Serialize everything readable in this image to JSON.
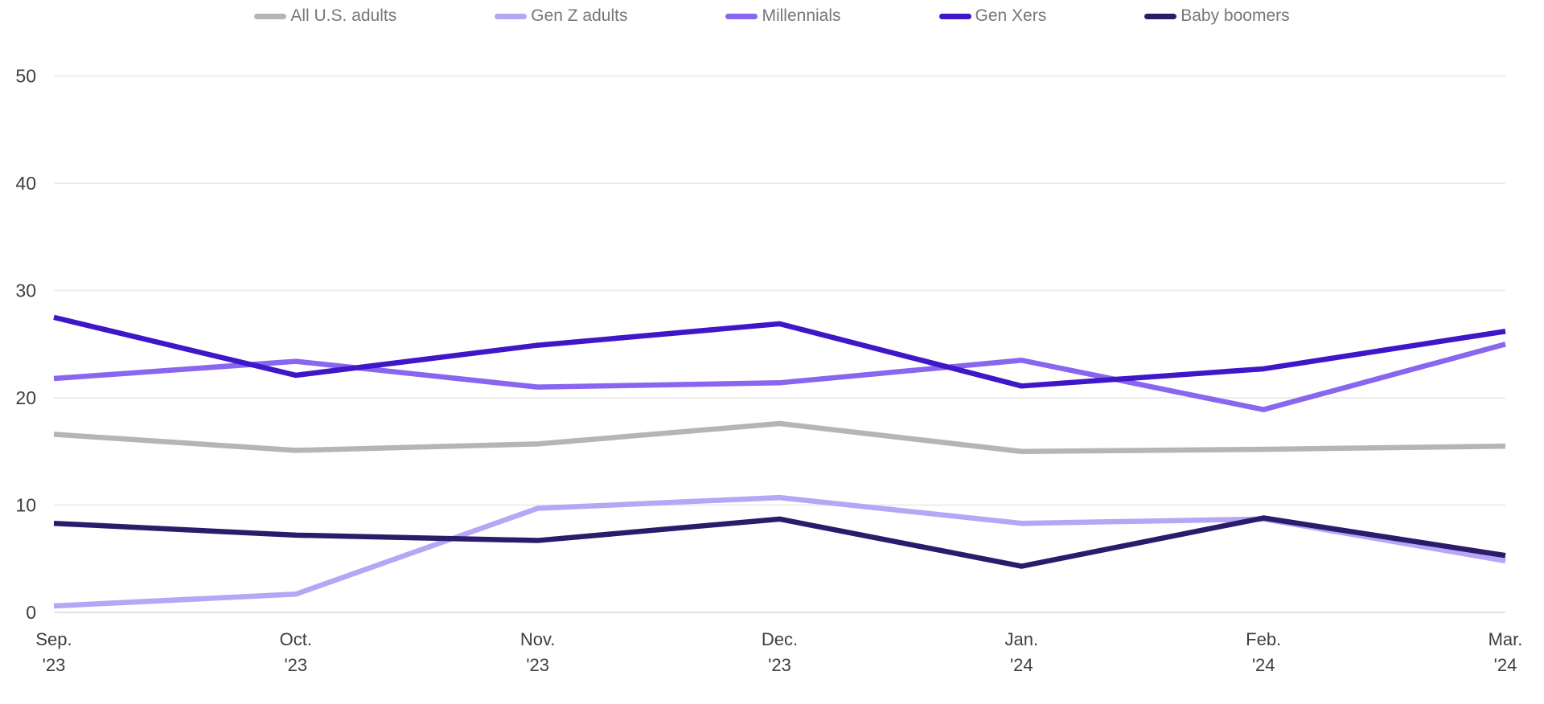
{
  "chart_data": {
    "type": "line",
    "title": "",
    "xlabel": "",
    "ylabel": "",
    "ylim": [
      0,
      50
    ],
    "yticks": [
      0,
      10,
      20,
      30,
      40,
      50
    ],
    "grid": "horizontal",
    "legend_position": "top",
    "x_categories": [
      {
        "month": "Sep.",
        "year": "'23"
      },
      {
        "month": "Oct.",
        "year": "'23"
      },
      {
        "month": "Nov.",
        "year": "'23"
      },
      {
        "month": "Dec.",
        "year": "'23"
      },
      {
        "month": "Jan.",
        "year": "'24"
      },
      {
        "month": "Feb.",
        "year": "'24"
      },
      {
        "month": "Mar.",
        "year": "'24"
      }
    ],
    "series": [
      {
        "name": "All U.S. adults",
        "color": "#b5b5b5",
        "values": [
          16.6,
          15.1,
          15.7,
          17.6,
          15.0,
          15.2,
          15.5
        ]
      },
      {
        "name": "Gen Z adults",
        "color": "#b7a5f6",
        "values": [
          0.6,
          1.7,
          9.7,
          10.7,
          8.3,
          8.7,
          4.8
        ]
      },
      {
        "name": "Millennials",
        "color": "#8a65ef",
        "values": [
          21.8,
          23.4,
          21.0,
          21.4,
          23.5,
          18.9,
          25.0
        ]
      },
      {
        "name": "Gen Xers",
        "color": "#3f16c8",
        "values": [
          27.5,
          22.1,
          24.9,
          26.9,
          21.1,
          22.7,
          26.2
        ]
      },
      {
        "name": "Baby boomers",
        "color": "#2b1c6b",
        "values": [
          8.3,
          7.2,
          6.7,
          8.7,
          4.3,
          8.8,
          5.3
        ]
      }
    ]
  },
  "colors": {
    "background": "#ffffff",
    "gridline": "#ececec",
    "axis_text": "#3c4043",
    "legend_text": "#74777b"
  }
}
